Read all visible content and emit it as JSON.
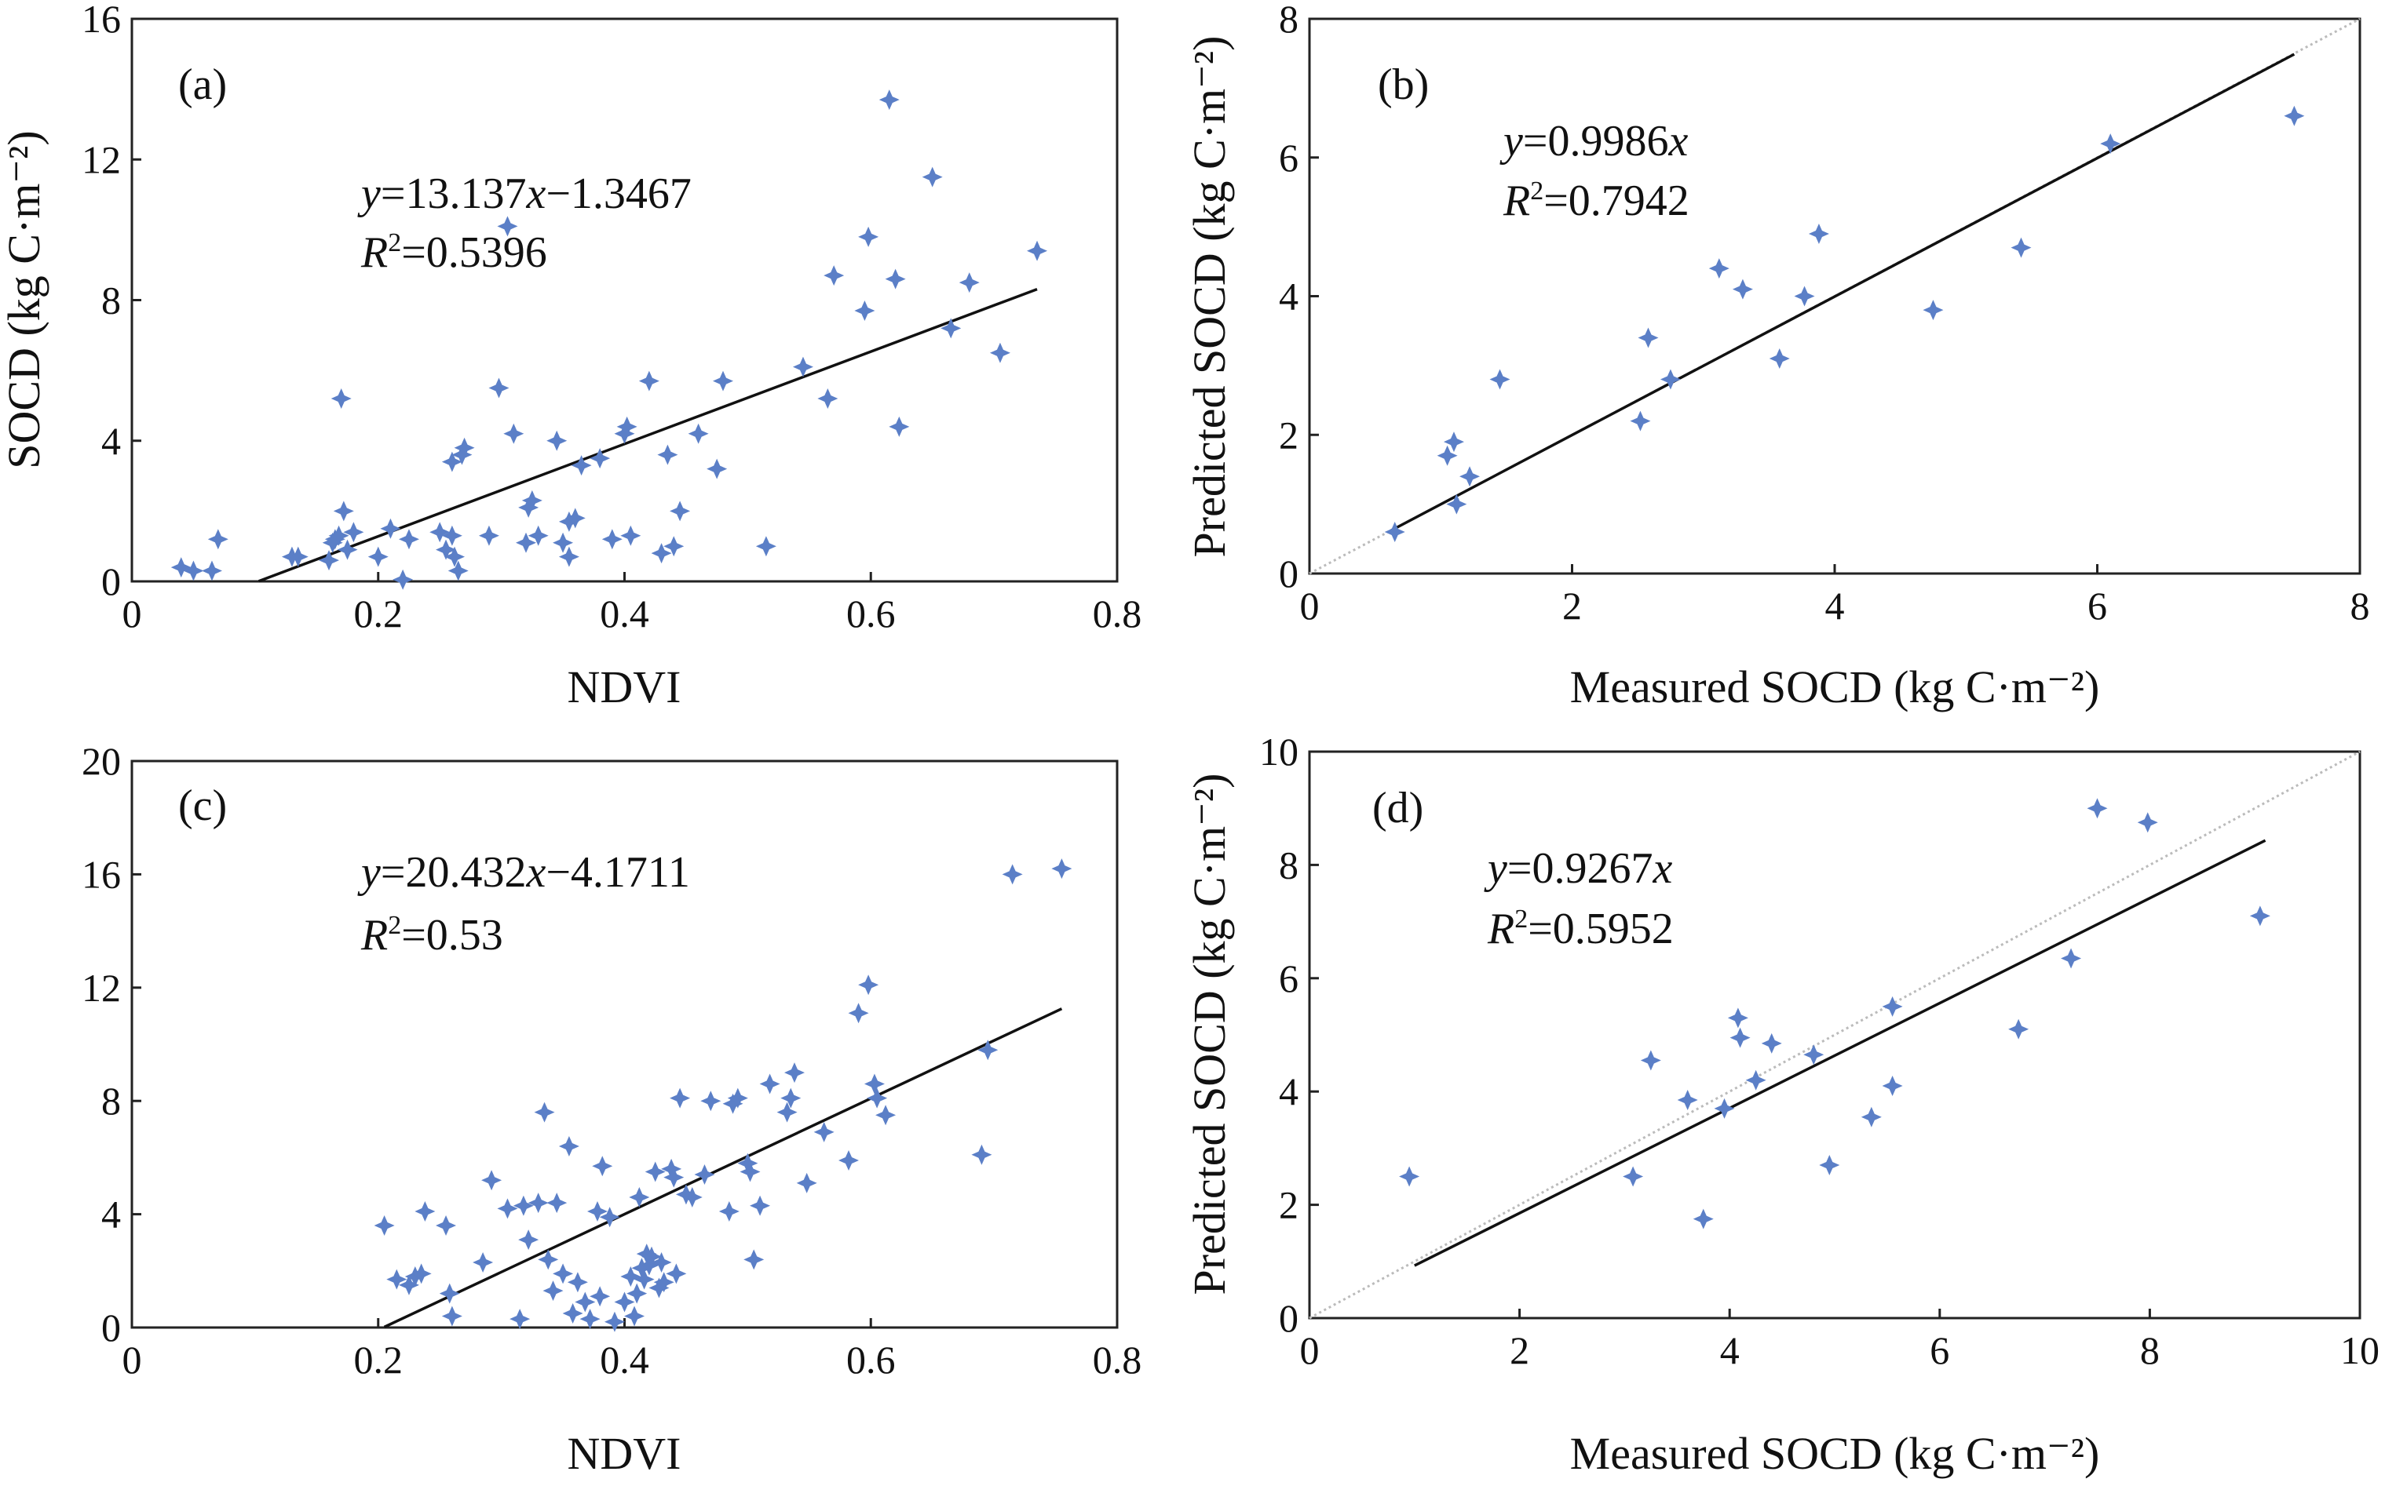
{
  "colors": {
    "marker": "#5b7fc7",
    "line": "#111111",
    "reference": "#bbbbbb"
  },
  "chart_data": [
    {
      "type": "scatter",
      "label": "(a)",
      "xlabel": "NDVI",
      "ylabel": "SOCD (kg C·m⁻²)",
      "xlim": [
        0,
        0.8
      ],
      "ylim": [
        0,
        16
      ],
      "xticks": [
        "0",
        "0.2",
        "0.4",
        "0.6",
        "0.8"
      ],
      "yticks": [
        "0",
        "4",
        "8",
        "12",
        "16"
      ],
      "equation": {
        "y": "y",
        "rest": "=13.137",
        "x": "x",
        "tail": "−1.3467"
      },
      "r2": {
        "r": "R",
        "sup": "2",
        "rest": "=0.5396"
      },
      "fit": {
        "slope": 13.137,
        "intercept": -1.3467,
        "x_range": [
          0.103,
          0.735
        ]
      },
      "reference_line": false,
      "points": [
        [
          0.04,
          0.4
        ],
        [
          0.05,
          0.3
        ],
        [
          0.065,
          0.3
        ],
        [
          0.07,
          1.2
        ],
        [
          0.13,
          0.7
        ],
        [
          0.135,
          0.7
        ],
        [
          0.16,
          0.6
        ],
        [
          0.163,
          1.1
        ],
        [
          0.165,
          1.2
        ],
        [
          0.168,
          1.3
        ],
        [
          0.17,
          5.2
        ],
        [
          0.172,
          2.0
        ],
        [
          0.175,
          0.9
        ],
        [
          0.18,
          1.4
        ],
        [
          0.2,
          0.7
        ],
        [
          0.21,
          1.5
        ],
        [
          0.22,
          0.05
        ],
        [
          0.225,
          1.2
        ],
        [
          0.25,
          1.4
        ],
        [
          0.255,
          0.9
        ],
        [
          0.26,
          1.3
        ],
        [
          0.262,
          0.7
        ],
        [
          0.265,
          0.3
        ],
        [
          0.26,
          3.4
        ],
        [
          0.268,
          3.6
        ],
        [
          0.27,
          3.8
        ],
        [
          0.29,
          1.3
        ],
        [
          0.298,
          5.5
        ],
        [
          0.305,
          10.1
        ],
        [
          0.31,
          4.2
        ],
        [
          0.32,
          1.1
        ],
        [
          0.322,
          2.1
        ],
        [
          0.325,
          2.3
        ],
        [
          0.33,
          1.3
        ],
        [
          0.345,
          4.0
        ],
        [
          0.35,
          1.1
        ],
        [
          0.355,
          0.7
        ],
        [
          0.355,
          1.7
        ],
        [
          0.36,
          1.8
        ],
        [
          0.365,
          3.3
        ],
        [
          0.38,
          3.5
        ],
        [
          0.39,
          1.2
        ],
        [
          0.4,
          4.2
        ],
        [
          0.402,
          4.4
        ],
        [
          0.405,
          1.3
        ],
        [
          0.42,
          5.7
        ],
        [
          0.43,
          0.8
        ],
        [
          0.435,
          3.6
        ],
        [
          0.44,
          1.0
        ],
        [
          0.445,
          2.0
        ],
        [
          0.46,
          4.2
        ],
        [
          0.475,
          3.2
        ],
        [
          0.48,
          5.7
        ],
        [
          0.515,
          1.0
        ],
        [
          0.545,
          6.1
        ],
        [
          0.565,
          5.2
        ],
        [
          0.57,
          8.7
        ],
        [
          0.595,
          7.7
        ],
        [
          0.598,
          9.8
        ],
        [
          0.615,
          13.7
        ],
        [
          0.62,
          8.6
        ],
        [
          0.623,
          4.4
        ],
        [
          0.65,
          11.5
        ],
        [
          0.665,
          7.2
        ],
        [
          0.68,
          8.5
        ],
        [
          0.705,
          6.5
        ],
        [
          0.735,
          9.4
        ]
      ]
    },
    {
      "type": "scatter",
      "label": "(b)",
      "xlabel": "Measured SOCD (kg C·m⁻²)",
      "ylabel": "Predicted SOCD (kg C·m⁻²)",
      "xlim": [
        0,
        8
      ],
      "ylim": [
        0,
        8
      ],
      "xticks": [
        "0",
        "2",
        "4",
        "6",
        "8"
      ],
      "yticks": [
        "0",
        "2",
        "4",
        "6",
        "8"
      ],
      "equation": {
        "y": "y",
        "rest": "=0.9986",
        "x": "x",
        "tail": ""
      },
      "r2": {
        "r": "R",
        "sup": "2",
        "rest": "=0.7942"
      },
      "fit": {
        "slope": 0.9986,
        "intercept": 0,
        "x_range": [
          0.62,
          7.5
        ]
      },
      "reference_line": true,
      "points": [
        [
          0.65,
          0.6
        ],
        [
          1.05,
          1.7
        ],
        [
          1.1,
          1.9
        ],
        [
          1.12,
          1.0
        ],
        [
          1.22,
          1.4
        ],
        [
          1.45,
          2.8
        ],
        [
          2.52,
          2.2
        ],
        [
          2.58,
          3.4
        ],
        [
          2.75,
          2.8
        ],
        [
          3.12,
          4.4
        ],
        [
          3.3,
          4.1
        ],
        [
          3.58,
          3.1
        ],
        [
          3.77,
          4.0
        ],
        [
          3.88,
          4.9
        ],
        [
          4.75,
          3.8
        ],
        [
          5.42,
          4.7
        ],
        [
          6.1,
          6.2
        ],
        [
          7.5,
          6.6
        ]
      ]
    },
    {
      "type": "scatter",
      "label": "(c)",
      "xlabel": "NDVI",
      "ylabel": "",
      "xlim": [
        0,
        0.8
      ],
      "ylim": [
        0,
        20
      ],
      "xticks": [
        "0",
        "0.2",
        "0.4",
        "0.6",
        "0.8"
      ],
      "yticks": [
        "0",
        "4",
        "8",
        "12",
        "16",
        "20"
      ],
      "equation": {
        "y": "y",
        "rest": "=20.432",
        "x": "x",
        "tail": "−4.1711"
      },
      "r2": {
        "r": "R",
        "sup": "2",
        "rest": "=0.53"
      },
      "fit": {
        "slope": 20.432,
        "intercept": -4.1711,
        "x_range": [
          0.205,
          0.755
        ]
      },
      "reference_line": false,
      "points": [
        [
          0.205,
          3.6
        ],
        [
          0.215,
          1.7
        ],
        [
          0.225,
          1.5
        ],
        [
          0.23,
          1.8
        ],
        [
          0.235,
          1.9
        ],
        [
          0.238,
          4.1
        ],
        [
          0.255,
          3.6
        ],
        [
          0.258,
          1.2
        ],
        [
          0.26,
          0.4
        ],
        [
          0.285,
          2.3
        ],
        [
          0.292,
          5.2
        ],
        [
          0.305,
          4.2
        ],
        [
          0.315,
          0.3
        ],
        [
          0.318,
          4.3
        ],
        [
          0.322,
          3.1
        ],
        [
          0.33,
          4.4
        ],
        [
          0.335,
          7.6
        ],
        [
          0.338,
          2.4
        ],
        [
          0.342,
          1.3
        ],
        [
          0.345,
          4.4
        ],
        [
          0.35,
          1.9
        ],
        [
          0.355,
          6.4
        ],
        [
          0.358,
          0.5
        ],
        [
          0.362,
          1.6
        ],
        [
          0.368,
          0.9
        ],
        [
          0.372,
          0.3
        ],
        [
          0.378,
          4.1
        ],
        [
          0.38,
          1.1
        ],
        [
          0.382,
          5.7
        ],
        [
          0.388,
          3.9
        ],
        [
          0.392,
          0.2
        ],
        [
          0.4,
          0.9
        ],
        [
          0.405,
          1.8
        ],
        [
          0.408,
          0.4
        ],
        [
          0.41,
          1.2
        ],
        [
          0.412,
          4.6
        ],
        [
          0.414,
          2.1
        ],
        [
          0.416,
          1.7
        ],
        [
          0.418,
          2.6
        ],
        [
          0.42,
          2.2
        ],
        [
          0.422,
          2.5
        ],
        [
          0.425,
          5.5
        ],
        [
          0.428,
          1.4
        ],
        [
          0.43,
          2.3
        ],
        [
          0.432,
          1.6
        ],
        [
          0.438,
          5.6
        ],
        [
          0.44,
          5.3
        ],
        [
          0.442,
          1.9
        ],
        [
          0.445,
          8.1
        ],
        [
          0.45,
          4.7
        ],
        [
          0.455,
          4.6
        ],
        [
          0.465,
          5.4
        ],
        [
          0.47,
          8.0
        ],
        [
          0.485,
          4.1
        ],
        [
          0.488,
          7.9
        ],
        [
          0.492,
          8.1
        ],
        [
          0.5,
          5.8
        ],
        [
          0.502,
          5.5
        ],
        [
          0.505,
          2.4
        ],
        [
          0.51,
          4.3
        ],
        [
          0.518,
          8.6
        ],
        [
          0.532,
          7.6
        ],
        [
          0.535,
          8.1
        ],
        [
          0.538,
          9.0
        ],
        [
          0.548,
          5.1
        ],
        [
          0.562,
          6.9
        ],
        [
          0.582,
          5.9
        ],
        [
          0.59,
          11.1
        ],
        [
          0.598,
          12.1
        ],
        [
          0.603,
          8.6
        ],
        [
          0.605,
          8.1
        ],
        [
          0.612,
          7.5
        ],
        [
          0.69,
          6.1
        ],
        [
          0.695,
          9.8
        ],
        [
          0.715,
          16.0
        ],
        [
          0.755,
          16.2
        ]
      ]
    },
    {
      "type": "scatter",
      "label": "(d)",
      "xlabel": "Measured SOCD (kg C·m⁻²)",
      "ylabel": "Predicted SOCD (kg C·m⁻²)",
      "xlim": [
        0,
        10
      ],
      "ylim": [
        0,
        10
      ],
      "xticks": [
        "0",
        "2",
        "4",
        "6",
        "8",
        "10"
      ],
      "yticks": [
        "0",
        "2",
        "4",
        "6",
        "8",
        "10"
      ],
      "equation": {
        "y": "y",
        "rest": "=0.9267",
        "x": "x",
        "tail": ""
      },
      "r2": {
        "r": "R",
        "sup": "2",
        "rest": "=0.5952"
      },
      "fit": {
        "slope": 0.9267,
        "intercept": 0,
        "x_range": [
          1.0,
          9.1
        ]
      },
      "reference_line": true,
      "points": [
        [
          0.95,
          2.5
        ],
        [
          3.08,
          2.5
        ],
        [
          3.25,
          4.55
        ],
        [
          3.6,
          3.85
        ],
        [
          3.75,
          1.75
        ],
        [
          3.95,
          3.7
        ],
        [
          4.08,
          5.3
        ],
        [
          4.1,
          4.95
        ],
        [
          4.25,
          4.2
        ],
        [
          4.4,
          4.85
        ],
        [
          4.8,
          4.65
        ],
        [
          4.95,
          2.7
        ],
        [
          5.35,
          3.55
        ],
        [
          5.55,
          4.1
        ],
        [
          5.55,
          5.5
        ],
        [
          6.75,
          5.1
        ],
        [
          7.25,
          6.35
        ],
        [
          7.5,
          9.0
        ],
        [
          7.98,
          8.75
        ],
        [
          9.05,
          7.1
        ]
      ]
    }
  ]
}
